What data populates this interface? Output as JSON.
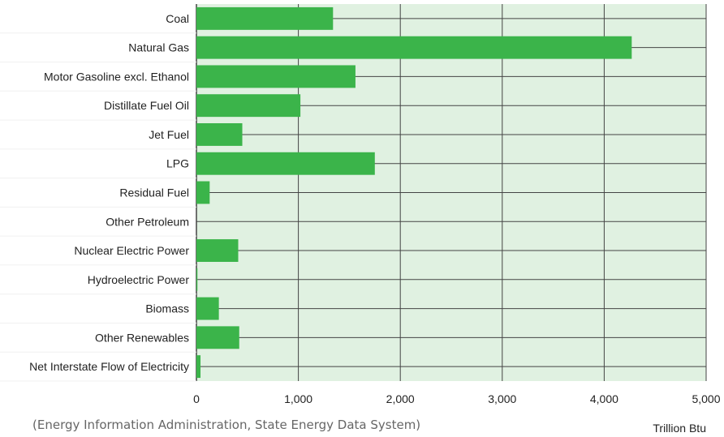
{
  "chart_data": {
    "type": "bar",
    "orientation": "horizontal",
    "categories": [
      "Coal",
      "Natural Gas",
      "Motor Gasoline excl. Ethanol",
      "Distillate Fuel Oil",
      "Jet Fuel",
      "LPG",
      "Residual Fuel",
      "Other Petroleum",
      "Nuclear Electric Power",
      "Hydroelectric Power",
      "Biomass",
      "Other Renewables",
      "Net Interstate Flow of Electricity"
    ],
    "values": [
      1340,
      4270,
      1560,
      1020,
      450,
      1750,
      130,
      0,
      410,
      10,
      220,
      420,
      40
    ],
    "xlim": [
      0,
      5000
    ],
    "x_ticks": [
      0,
      1000,
      2000,
      3000,
      4000,
      5000
    ],
    "x_tick_labels": [
      "0",
      "1,000",
      "2,000",
      "3,000",
      "4,000",
      "5,000"
    ],
    "unit_label": "Trillion Btu",
    "source": "(Energy Information Administration, State Energy Data System)",
    "grid": true,
    "colors": {
      "bar": "#3bb44a",
      "plot_background": "#e0f1e1",
      "category_background": "#ffffff",
      "grid": "#444444",
      "row_line": "#444444"
    }
  }
}
